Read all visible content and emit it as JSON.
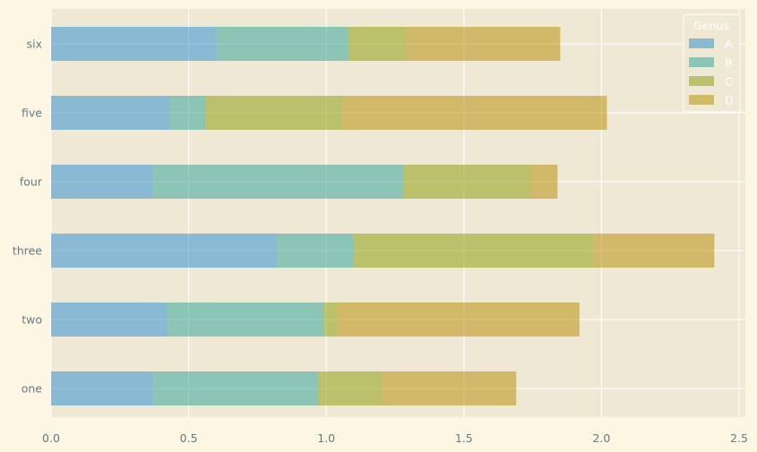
{
  "chart_data": {
    "type": "bar",
    "orientation": "horizontal",
    "stacked": true,
    "categories": [
      "one",
      "two",
      "three",
      "four",
      "five",
      "six"
    ],
    "series": [
      {
        "name": "A",
        "color": "#268bd2",
        "values": [
          0.37,
          0.42,
          0.82,
          0.37,
          0.43,
          0.6
        ]
      },
      {
        "name": "B",
        "color": "#2aa198",
        "values": [
          0.6,
          0.57,
          0.28,
          0.91,
          0.13,
          0.48
        ]
      },
      {
        "name": "C",
        "color": "#859900",
        "values": [
          0.23,
          0.05,
          0.87,
          0.46,
          0.5,
          0.21
        ]
      },
      {
        "name": "D",
        "color": "#b58900",
        "values": [
          0.49,
          0.88,
          0.44,
          0.1,
          0.96,
          0.56
        ]
      }
    ],
    "xlim": [
      0,
      2.52
    ],
    "xticks": [
      "0.0",
      "0.5",
      "1.0",
      "1.5",
      "2.0",
      "2.5"
    ],
    "xtick_values": [
      0,
      0.5,
      1.0,
      1.5,
      2.0,
      2.5
    ],
    "grid": true,
    "legend": {
      "title": "Genus",
      "position": "top-right"
    },
    "bar_alpha": 0.5,
    "colors": {
      "background": "#fdf6e3",
      "plot_area": "#eee8d5",
      "grid": "#ffffff",
      "tick_text": "#657b83"
    }
  }
}
